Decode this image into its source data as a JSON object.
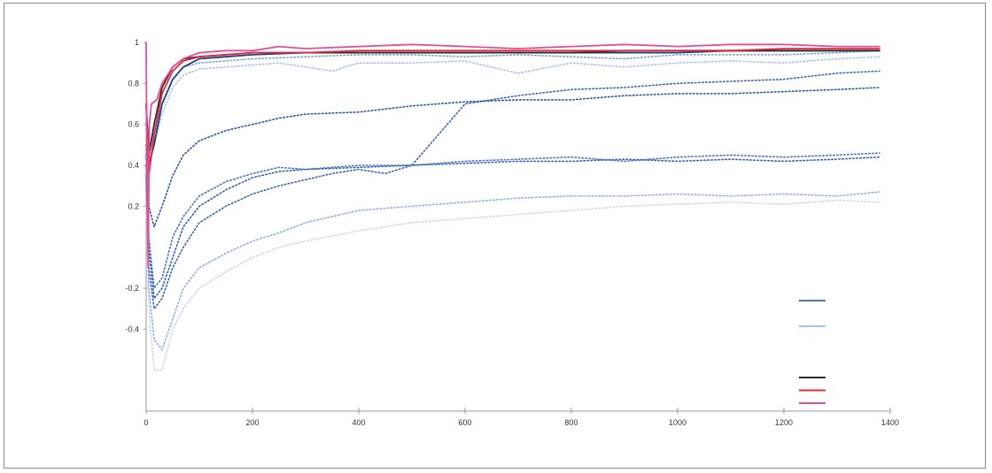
{
  "chart_data": {
    "type": "line",
    "title": "",
    "xlabel": "",
    "ylabel": "",
    "xlim": [
      0,
      1400
    ],
    "ylim": [
      -0.8,
      1.0
    ],
    "xticks": [
      {
        "value": 0,
        "label": "0"
      },
      {
        "value": 200,
        "label": "200"
      },
      {
        "value": 400,
        "label": "400"
      },
      {
        "value": 600,
        "label": "600"
      },
      {
        "value": 800,
        "label": "800"
      },
      {
        "value": 1000,
        "label": "1000"
      },
      {
        "value": 1200,
        "label": "1200"
      },
      {
        "value": 1400,
        "label": "1400"
      }
    ],
    "yticks": [
      {
        "value": 1.0,
        "label": "1"
      },
      {
        "value": 0.8,
        "label": "0.8"
      },
      {
        "value": 0.6,
        "label": "0.6"
      },
      {
        "value": 0.4,
        "label": "0.4"
      },
      {
        "value": 0.2,
        "label": "0.2"
      },
      {
        "value": -0.2,
        "label": "-0.2"
      },
      {
        "value": -0.4,
        "label": "-0.4"
      }
    ],
    "grid": false,
    "legend_position": "bottom-right",
    "series": [
      {
        "name": "",
        "color": "#c9d8ee",
        "dashed": true,
        "shown_in_legend": false,
        "x": [
          0,
          5,
          15,
          30,
          50,
          70,
          100,
          150,
          200,
          250,
          300,
          400,
          500,
          600,
          700,
          800,
          900,
          1000,
          1100,
          1200,
          1300,
          1380
        ],
        "y": [
          0.2,
          -0.3,
          -0.6,
          -0.6,
          -0.4,
          -0.3,
          -0.2,
          -0.12,
          -0.05,
          0.0,
          0.03,
          0.08,
          0.12,
          0.14,
          0.16,
          0.18,
          0.2,
          0.21,
          0.22,
          0.21,
          0.23,
          0.22
        ]
      },
      {
        "name": "",
        "color": "#8fb0e0",
        "dashed": true,
        "shown_in_legend": false,
        "x": [
          0,
          5,
          15,
          30,
          50,
          70,
          100,
          150,
          200,
          250,
          300,
          400,
          500,
          600,
          700,
          800,
          900,
          1000,
          1100,
          1200,
          1300,
          1380
        ],
        "y": [
          0.3,
          -0.2,
          -0.45,
          -0.5,
          -0.35,
          -0.2,
          -0.1,
          -0.03,
          0.03,
          0.07,
          0.12,
          0.18,
          0.2,
          0.22,
          0.24,
          0.25,
          0.25,
          0.26,
          0.25,
          0.26,
          0.25,
          0.27
        ]
      },
      {
        "name": "",
        "color": "#3b63b8",
        "dashed": true,
        "shown_in_legend": false,
        "x": [
          0,
          5,
          15,
          30,
          50,
          70,
          100,
          150,
          200,
          250,
          300,
          350,
          400,
          450,
          500,
          550,
          600,
          700,
          800,
          900,
          1000,
          1100,
          1200,
          1300,
          1380
        ],
        "y": [
          0.35,
          -0.1,
          -0.3,
          -0.25,
          -0.1,
          0.0,
          0.12,
          0.2,
          0.26,
          0.3,
          0.33,
          0.36,
          0.38,
          0.36,
          0.4,
          0.55,
          0.7,
          0.74,
          0.77,
          0.78,
          0.8,
          0.81,
          0.82,
          0.85,
          0.86
        ]
      },
      {
        "name": "",
        "color": "#2f5fb3",
        "dashed": true,
        "shown_in_legend": false,
        "x": [
          0,
          5,
          15,
          30,
          50,
          70,
          100,
          150,
          200,
          250,
          300,
          400,
          500,
          600,
          700,
          800,
          900,
          1000,
          1100,
          1200,
          1300,
          1380
        ],
        "y": [
          0.4,
          0.0,
          -0.25,
          -0.2,
          -0.05,
          0.1,
          0.2,
          0.28,
          0.34,
          0.37,
          0.38,
          0.39,
          0.4,
          0.41,
          0.42,
          0.42,
          0.43,
          0.42,
          0.43,
          0.42,
          0.43,
          0.44
        ]
      },
      {
        "name": "",
        "color": "#4a75c8",
        "dashed": true,
        "shown_in_legend": false,
        "x": [
          0,
          5,
          15,
          30,
          50,
          70,
          100,
          150,
          200,
          250,
          300,
          400,
          500,
          600,
          700,
          800,
          900,
          1000,
          1100,
          1200,
          1300,
          1380
        ],
        "y": [
          0.45,
          0.05,
          -0.2,
          -0.15,
          0.05,
          0.15,
          0.25,
          0.32,
          0.36,
          0.39,
          0.38,
          0.4,
          0.4,
          0.42,
          0.43,
          0.44,
          0.42,
          0.44,
          0.45,
          0.44,
          0.45,
          0.46
        ]
      },
      {
        "name": "",
        "color": "#2a55a8",
        "dashed": true,
        "shown_in_legend": false,
        "x": [
          0,
          5,
          15,
          30,
          50,
          70,
          100,
          150,
          200,
          250,
          300,
          400,
          500,
          600,
          700,
          800,
          900,
          1000,
          1100,
          1200,
          1300,
          1380
        ],
        "y": [
          0.5,
          0.2,
          0.1,
          0.2,
          0.35,
          0.45,
          0.52,
          0.57,
          0.6,
          0.63,
          0.65,
          0.66,
          0.69,
          0.71,
          0.72,
          0.72,
          0.74,
          0.75,
          0.75,
          0.76,
          0.77,
          0.78
        ]
      },
      {
        "name": "",
        "color": "#a9c2e8",
        "dashed": true,
        "shown_in_legend": false,
        "x": [
          0,
          5,
          15,
          30,
          50,
          70,
          100,
          150,
          200,
          250,
          300,
          350,
          400,
          500,
          600,
          700,
          800,
          900,
          1000,
          1100,
          1200,
          1300,
          1380
        ],
        "y": [
          0.6,
          0.4,
          0.5,
          0.65,
          0.78,
          0.84,
          0.87,
          0.88,
          0.89,
          0.9,
          0.88,
          0.86,
          0.9,
          0.9,
          0.91,
          0.85,
          0.9,
          0.88,
          0.9,
          0.91,
          0.9,
          0.92,
          0.93
        ]
      },
      {
        "name": "",
        "color": "#7f9fd9",
        "dashed": true,
        "shown_in_legend": false,
        "x": [
          0,
          5,
          15,
          30,
          50,
          70,
          100,
          150,
          200,
          300,
          400,
          500,
          600,
          700,
          800,
          900,
          1000,
          1100,
          1200,
          1300,
          1380
        ],
        "y": [
          0.6,
          0.4,
          0.55,
          0.7,
          0.82,
          0.88,
          0.9,
          0.91,
          0.92,
          0.93,
          0.94,
          0.94,
          0.93,
          0.94,
          0.93,
          0.92,
          0.94,
          0.94,
          0.94,
          0.95,
          0.96
        ]
      },
      {
        "name": "",
        "color": "#1e3f87",
        "dashed": false,
        "shown_in_legend": false,
        "x": [
          0,
          5,
          15,
          30,
          50,
          70,
          100,
          150,
          200,
          300,
          400,
          500,
          600,
          700,
          800,
          900,
          1000,
          1100,
          1200,
          1300,
          1380
        ],
        "y": [
          0.7,
          0.4,
          0.5,
          0.7,
          0.82,
          0.88,
          0.92,
          0.93,
          0.94,
          0.95,
          0.95,
          0.95,
          0.95,
          0.95,
          0.95,
          0.95,
          0.95,
          0.96,
          0.96,
          0.96,
          0.96
        ]
      },
      {
        "name": "",
        "color": "#2b2b2b",
        "dashed": false,
        "shown_in_legend": false,
        "x": [
          0,
          5,
          15,
          30,
          50,
          70,
          100,
          150,
          200,
          300,
          400,
          500,
          600,
          700,
          800,
          900,
          1000,
          1100,
          1200,
          1300,
          1380
        ],
        "y": [
          0.7,
          0.45,
          0.6,
          0.78,
          0.88,
          0.92,
          0.93,
          0.94,
          0.95,
          0.95,
          0.95,
          0.95,
          0.95,
          0.95,
          0.95,
          0.96,
          0.96,
          0.96,
          0.96,
          0.96,
          0.96
        ]
      },
      {
        "name": "",
        "color": "#e8283a",
        "dashed": false,
        "shown_in_legend": false,
        "x": [
          0,
          5,
          15,
          30,
          50,
          70,
          100,
          150,
          200,
          300,
          400,
          500,
          600,
          700,
          800,
          900,
          1000,
          1100,
          1200,
          1300,
          1380
        ],
        "y": [
          0.7,
          0.35,
          0.55,
          0.75,
          0.86,
          0.91,
          0.93,
          0.94,
          0.95,
          0.95,
          0.96,
          0.96,
          0.96,
          0.96,
          0.96,
          0.96,
          0.96,
          0.96,
          0.97,
          0.97,
          0.97
        ]
      },
      {
        "name": "",
        "color": "#e0509a",
        "dashed": false,
        "shown_in_legend": false,
        "x": [
          0,
          2,
          4,
          6,
          10,
          20,
          30,
          50,
          70,
          100,
          150,
          200,
          250,
          300,
          400,
          500,
          600,
          700,
          800,
          900,
          1000,
          1100,
          1200,
          1300,
          1380
        ],
        "y": [
          1.0,
          0.2,
          -0.1,
          0.6,
          0.7,
          0.72,
          0.8,
          0.88,
          0.92,
          0.95,
          0.96,
          0.96,
          0.98,
          0.97,
          0.98,
          0.99,
          0.98,
          0.97,
          0.98,
          0.99,
          0.98,
          0.99,
          0.99,
          0.98,
          0.98
        ]
      }
    ],
    "legend_entries": [
      {
        "label": "",
        "color": "#c9d8ee",
        "line": false
      },
      {
        "label": "",
        "color": "#8fb0e0",
        "line": false
      },
      {
        "label": "",
        "color": "#3b63b8",
        "line": false
      },
      {
        "label": "",
        "color": "#2f5fb3",
        "line": false
      },
      {
        "label": "",
        "color": "#4a75c8",
        "line": true
      },
      {
        "label": "",
        "color": "#2a55a8",
        "line": false
      },
      {
        "label": "",
        "color": "#a9c2e8",
        "line": true
      },
      {
        "label": "",
        "color": "#7f9fd9",
        "line": false
      },
      {
        "label": "",
        "color": "#1e3f87",
        "line": false
      },
      {
        "label": "",
        "color": "#2b2b2b",
        "line": false
      },
      {
        "label": "",
        "color": "#2b2b2b",
        "line": true
      },
      {
        "label": "",
        "color": "#e8283a",
        "line": true
      },
      {
        "label": "",
        "color": "#e0509a",
        "line": true
      }
    ]
  }
}
